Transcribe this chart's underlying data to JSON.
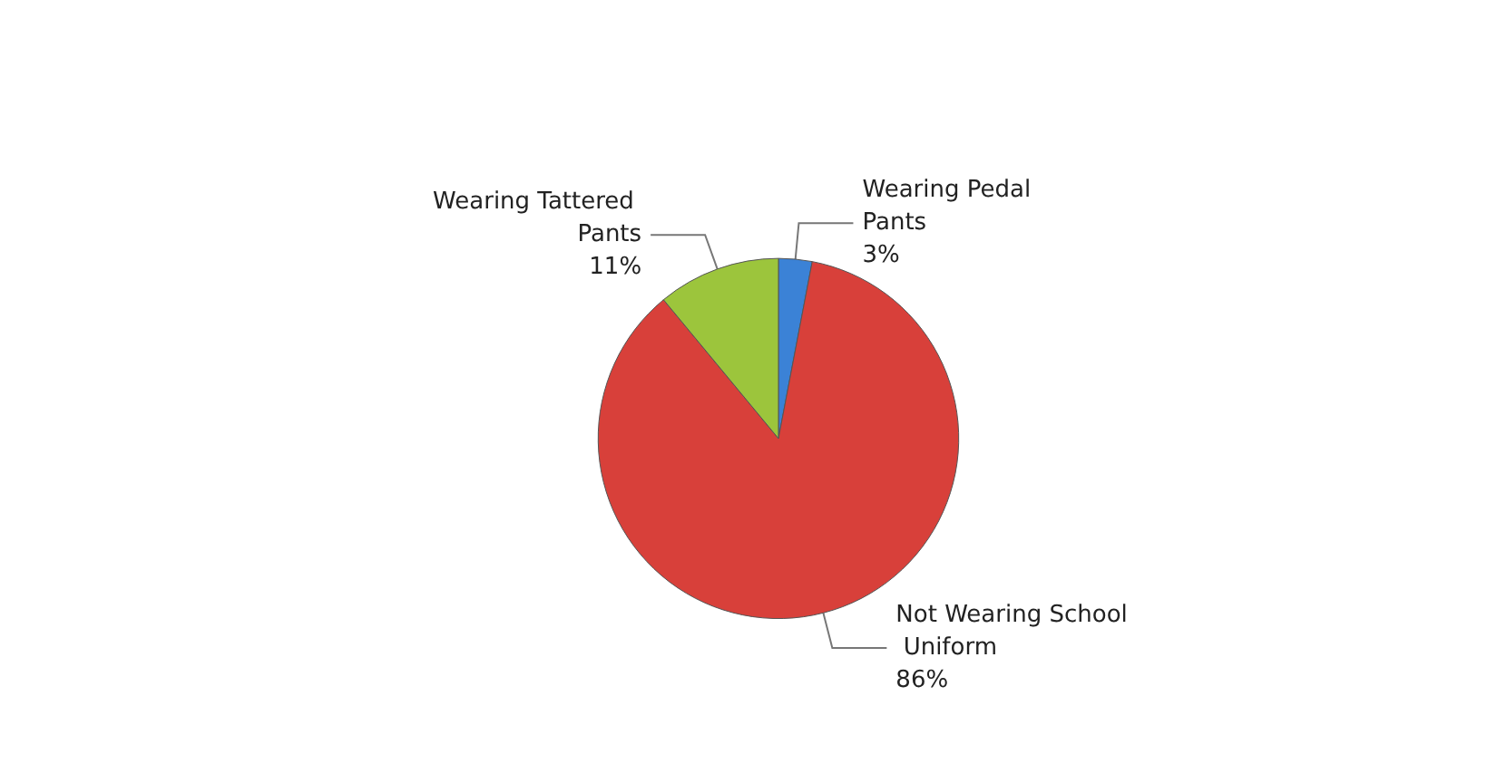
{
  "chart_data": {
    "type": "pie",
    "categories": [
      "Wearing Pedal Pants",
      "Not Wearing School Uniform",
      "Wearing Tattered Pants"
    ],
    "values": [
      3,
      86,
      11
    ],
    "colors": [
      "#3b82d6",
      "#d8403a",
      "#9cc53c"
    ],
    "value_labels": [
      "3%",
      "86%",
      "11%"
    ]
  }
}
